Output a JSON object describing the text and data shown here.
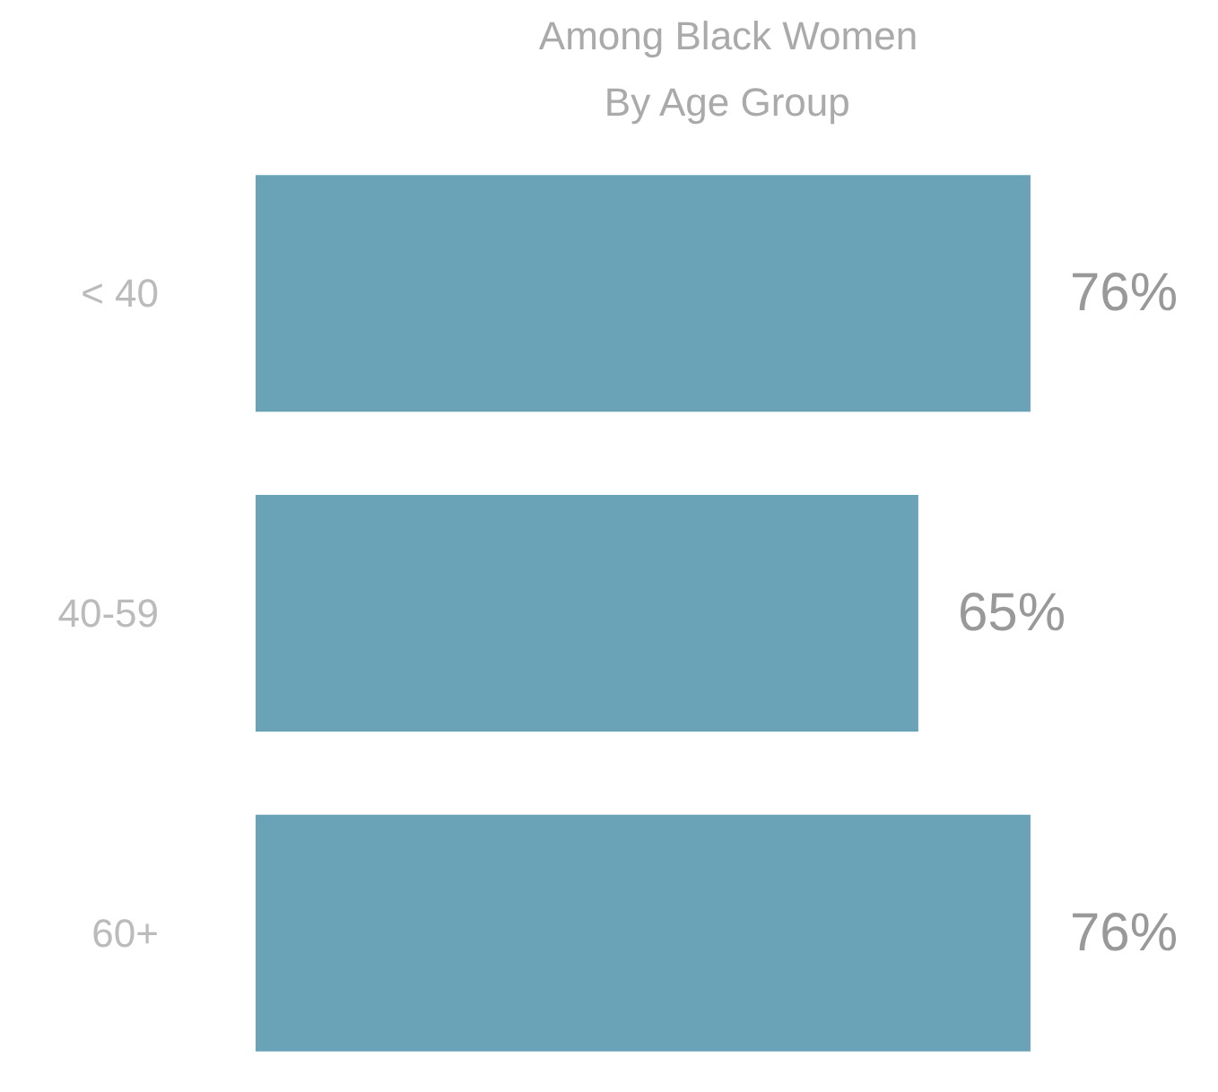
{
  "chart_data": {
    "type": "bar",
    "orientation": "horizontal",
    "title": "Among Black Women",
    "subtitle": "By Age Group",
    "categories": [
      "< 40",
      "40-59",
      "60+"
    ],
    "values": [
      76,
      65,
      76
    ],
    "color": "#6aa3b8",
    "value_labels": [
      "76%",
      "65%",
      "76%"
    ],
    "grid": false
  }
}
